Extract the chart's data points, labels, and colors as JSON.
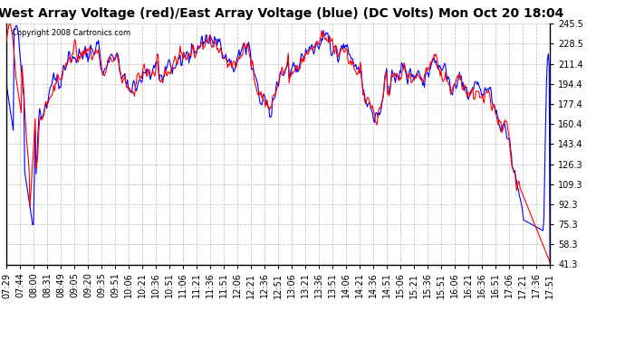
{
  "title": "West Array Voltage (red)/East Array Voltage (blue) (DC Volts) Mon Oct 20 18:04",
  "copyright": "Copyright 2008 Cartronics.com",
  "ylabel_values": [
    245.5,
    228.5,
    211.4,
    194.4,
    177.4,
    160.4,
    143.4,
    126.3,
    109.3,
    92.3,
    75.3,
    58.3,
    41.3
  ],
  "ymin": 41.3,
  "ymax": 245.5,
  "x_labels": [
    "07:29",
    "07:44",
    "08:00",
    "08:31",
    "08:49",
    "09:05",
    "09:20",
    "09:35",
    "09:51",
    "10:06",
    "10:21",
    "10:36",
    "10:51",
    "11:06",
    "11:21",
    "11:36",
    "11:51",
    "12:06",
    "12:21",
    "12:36",
    "12:51",
    "13:06",
    "13:21",
    "13:36",
    "13:51",
    "14:06",
    "14:21",
    "14:36",
    "14:51",
    "15:06",
    "15:21",
    "15:36",
    "15:51",
    "16:06",
    "16:21",
    "16:36",
    "16:51",
    "17:06",
    "17:21",
    "17:36",
    "17:51"
  ],
  "background_color": "#ffffff",
  "plot_bg_color": "#ffffff",
  "grid_color": "#aaaaaa",
  "red_color": "#ff0000",
  "blue_color": "#0000ff",
  "title_fontsize": 10,
  "tick_fontsize": 7,
  "figwidth": 6.9,
  "figheight": 3.75,
  "dpi": 100
}
